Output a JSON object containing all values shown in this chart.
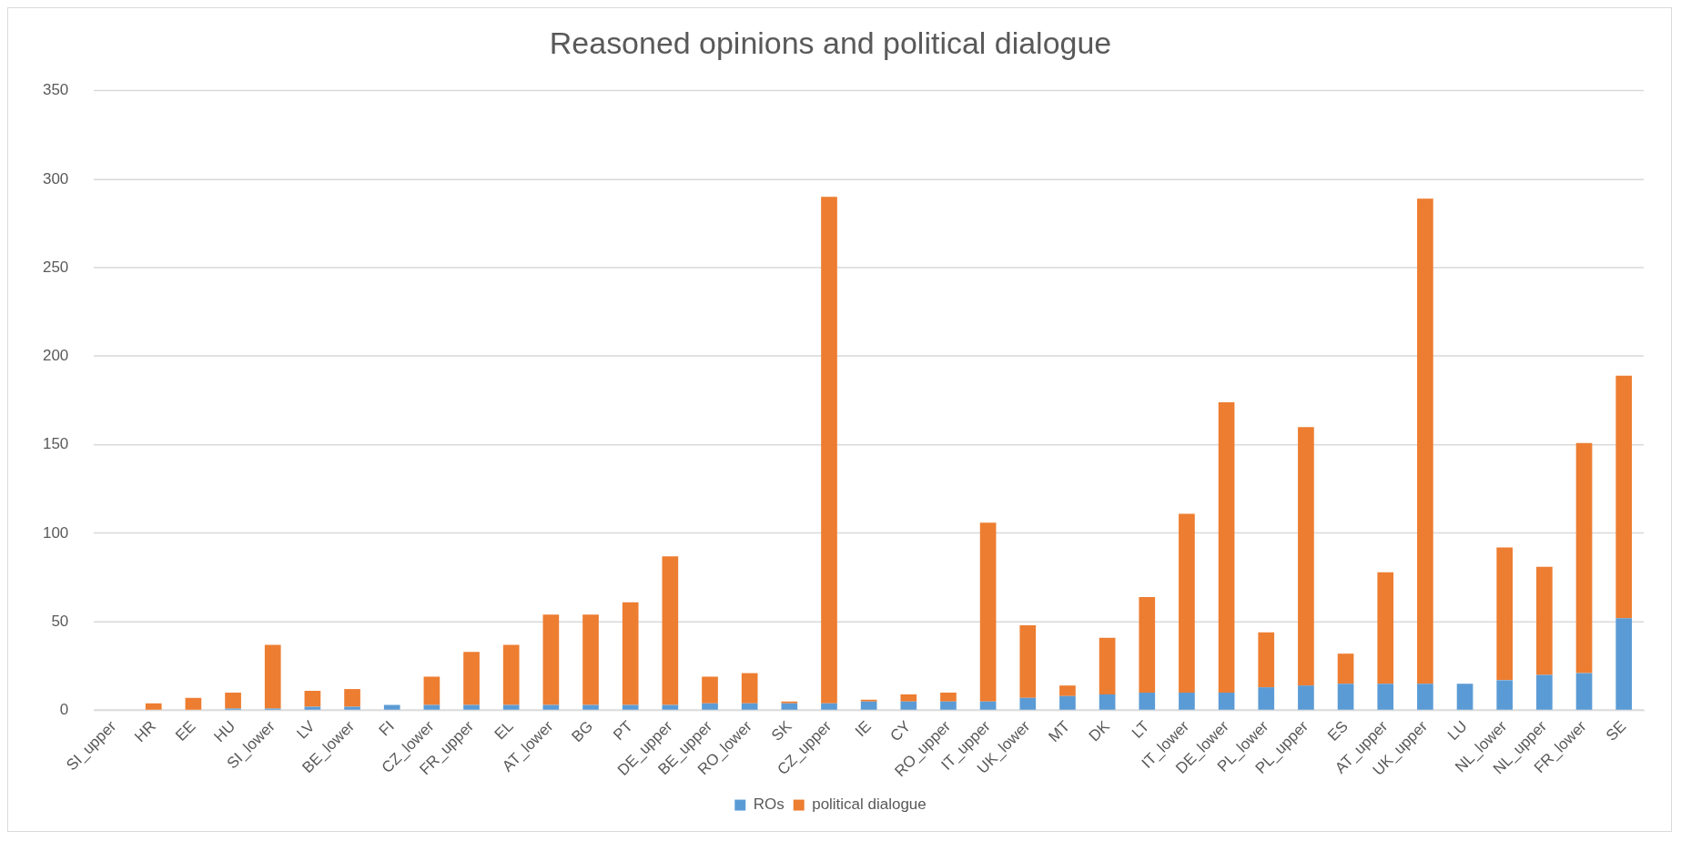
{
  "chart_data": {
    "type": "bar",
    "title": "Reasoned opinions and political dialogue",
    "stacked": true,
    "legend": "bottom",
    "grid": "y",
    "ylim": [
      0,
      350
    ],
    "yticks": [
      0,
      50,
      100,
      150,
      200,
      250,
      300,
      350
    ],
    "categories": [
      "SI_upper",
      "HR",
      "EE",
      "HU",
      "SI_lower",
      "LV",
      "BE_lower",
      "FI",
      "CZ_lower",
      "FR_upper",
      "EL",
      "AT_lower",
      "BG",
      "PT",
      "DE_upper",
      "BE_upper",
      "RO_lower",
      "SK",
      "CZ_upper",
      "IE",
      "CY",
      "RO_upper",
      "IT_upper",
      "UK_lower",
      "MT",
      "DK",
      "LT",
      "IT_lower",
      "DE_lower",
      "PL_lower",
      "PL_upper",
      "ES",
      "AT_upper",
      "UK_upper",
      "LU",
      "NL_lower",
      "NL_upper",
      "FR_lower",
      "SE"
    ],
    "series": [
      {
        "name": "ROs",
        "color": "#5b9bd5",
        "values": [
          0,
          0,
          0,
          1,
          1,
          2,
          2,
          3,
          3,
          3,
          3,
          3,
          3,
          3,
          3,
          4,
          4,
          4,
          4,
          5,
          5,
          5,
          5,
          7,
          8,
          9,
          10,
          10,
          10,
          13,
          14,
          15,
          15,
          15,
          15,
          17,
          20,
          21,
          52
        ]
      },
      {
        "name": "political dialogue",
        "color": "#ed7d31",
        "values": [
          0,
          4,
          7,
          9,
          36,
          9,
          10,
          0,
          16,
          30,
          34,
          51,
          51,
          58,
          84,
          15,
          17,
          1,
          286,
          1,
          4,
          5,
          101,
          41,
          6,
          32,
          54,
          101,
          164,
          31,
          146,
          17,
          63,
          274,
          0,
          75,
          61,
          130,
          137
        ]
      }
    ]
  }
}
